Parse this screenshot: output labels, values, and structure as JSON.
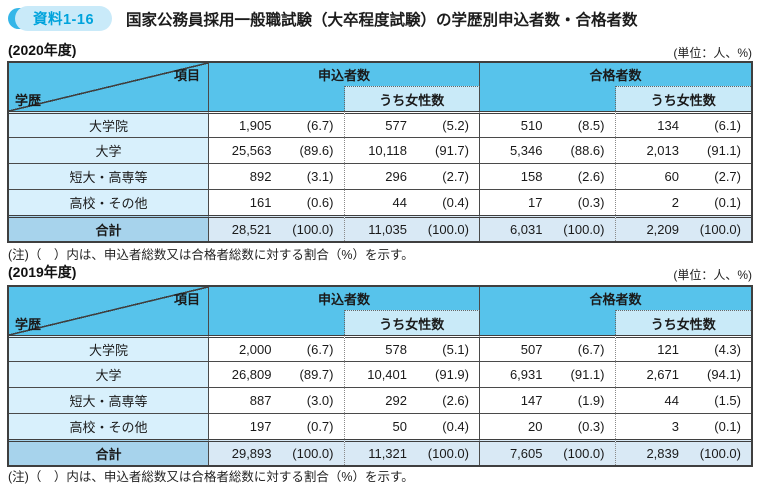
{
  "badge": "資料1-16",
  "title": "国家公務員採用一般職試験（大卒程度試験）の学歴別申込者数・合格者数",
  "colors": {
    "header_blue": "#57C3EB",
    "subheader_blue": "#C9EAF8",
    "label_blue": "#D8F0FC",
    "total_label_blue": "#A7D3EC",
    "total_cell_blue": "#D9E9F5",
    "badge_accent": "#35B6E8",
    "badge_bg": "#C9EAF9",
    "badge_text": "#00A3DC"
  },
  "header_labels": {
    "item": "項目",
    "education": "学歴",
    "applicants": "申込者数",
    "passers": "合格者数",
    "of_which_women": "うち女性数"
  },
  "tables": [
    {
      "year_label": "(2020年度)",
      "unit_label": "(単位：人、%)",
      "rows": [
        [
          "大学院",
          "1,905",
          "(6.7)",
          "577",
          "(5.2)",
          "510",
          "(8.5)",
          "134",
          "(6.1)"
        ],
        [
          "大学",
          "25,563",
          "(89.6)",
          "10,118",
          "(91.7)",
          "5,346",
          "(88.6)",
          "2,013",
          "(91.1)"
        ],
        [
          "短大・高専等",
          "892",
          "(3.1)",
          "296",
          "(2.7)",
          "158",
          "(2.6)",
          "60",
          "(2.7)"
        ],
        [
          "高校・その他",
          "161",
          "(0.6)",
          "44",
          "(0.4)",
          "17",
          "(0.3)",
          "2",
          "(0.1)"
        ]
      ],
      "total": [
        "合計",
        "28,521",
        "(100.0)",
        "11,035",
        "(100.0)",
        "6,031",
        "(100.0)",
        "2,209",
        "(100.0)"
      ],
      "note": "(注)（　）内は、申込者総数又は合格者総数に対する割合（%）を示す。"
    },
    {
      "year_label": "(2019年度)",
      "unit_label": "(単位：人、%)",
      "rows": [
        [
          "大学院",
          "2,000",
          "(6.7)",
          "578",
          "(5.1)",
          "507",
          "(6.7)",
          "121",
          "(4.3)"
        ],
        [
          "大学",
          "26,809",
          "(89.7)",
          "10,401",
          "(91.9)",
          "6,931",
          "(91.1)",
          "2,671",
          "(94.1)"
        ],
        [
          "短大・高専等",
          "887",
          "(3.0)",
          "292",
          "(2.6)",
          "147",
          "(1.9)",
          "44",
          "(1.5)"
        ],
        [
          "高校・その他",
          "197",
          "(0.7)",
          "50",
          "(0.4)",
          "20",
          "(0.3)",
          "3",
          "(0.1)"
        ]
      ],
      "total": [
        "合計",
        "29,893",
        "(100.0)",
        "11,321",
        "(100.0)",
        "7,605",
        "(100.0)",
        "2,839",
        "(100.0)"
      ],
      "note": "(注)（　）内は、申込者総数又は合格者総数に対する割合（%）を示す。"
    }
  ]
}
